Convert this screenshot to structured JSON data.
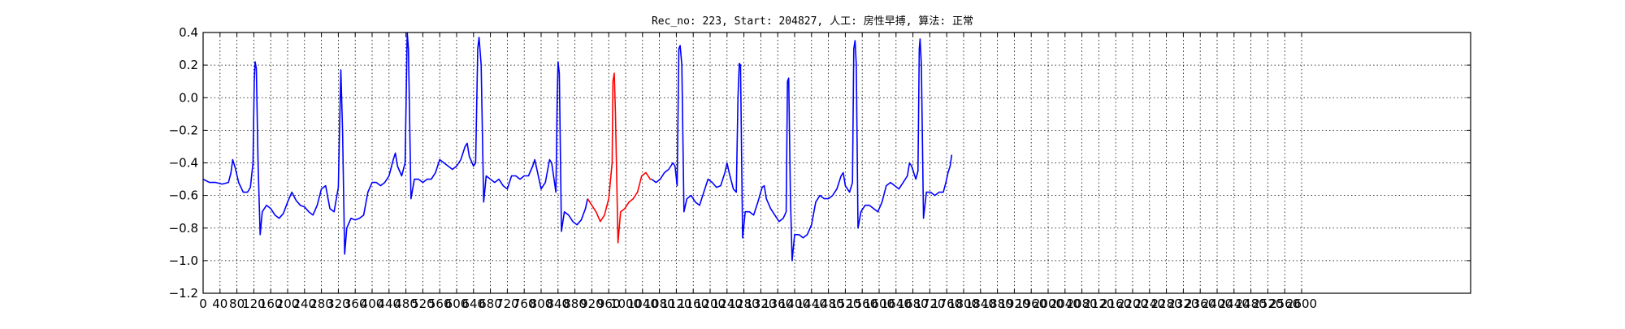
{
  "chart_data": {
    "type": "line",
    "title": "Rec_no: 223, Start: 204827, 人工: 房性早搏, 算法: 正常",
    "xlabel": "",
    "ylabel": "",
    "xlim": [
      0,
      3000
    ],
    "ylim": [
      -1.2,
      0.4
    ],
    "x_tick_step": 40,
    "x_tick_max": 2600,
    "y_ticks": [
      0.4,
      0.2,
      0.0,
      -0.2,
      -0.4,
      -0.6,
      -0.8,
      -1.0,
      -1.2
    ],
    "y_tick_labels": [
      "0.4",
      "0.2",
      "0.0",
      "−0.2",
      "−0.4",
      "−0.6",
      "−0.8",
      "−1.0",
      "−1.2"
    ],
    "grid": true,
    "series": [
      {
        "color": "#0000ff",
        "points": [
          [
            0,
            -0.5
          ],
          [
            15,
            -0.52
          ],
          [
            30,
            -0.52
          ],
          [
            45,
            -0.53
          ],
          [
            60,
            -0.52
          ],
          [
            66,
            -0.46
          ],
          [
            70,
            -0.38
          ],
          [
            76,
            -0.43
          ],
          [
            84,
            -0.52
          ],
          [
            95,
            -0.58
          ],
          [
            105,
            -0.58
          ],
          [
            112,
            -0.55
          ],
          [
            118,
            -0.4
          ],
          [
            121,
            0.1
          ],
          [
            123,
            0.22
          ],
          [
            126,
            0.18
          ],
          [
            130,
            -0.4
          ],
          [
            135,
            -0.84
          ],
          [
            140,
            -0.7
          ],
          [
            150,
            -0.66
          ],
          [
            160,
            -0.68
          ],
          [
            170,
            -0.72
          ],
          [
            180,
            -0.74
          ],
          [
            190,
            -0.71
          ],
          [
            200,
            -0.64
          ],
          [
            210,
            -0.58
          ],
          [
            220,
            -0.63
          ],
          [
            230,
            -0.66
          ],
          [
            240,
            -0.67
          ],
          [
            250,
            -0.7
          ],
          [
            260,
            -0.72
          ],
          [
            270,
            -0.66
          ],
          [
            280,
            -0.56
          ],
          [
            290,
            -0.54
          ],
          [
            300,
            -0.68
          ],
          [
            310,
            -0.7
          ],
          [
            320,
            -0.55
          ],
          [
            326,
            0.17
          ],
          [
            330,
            -0.2
          ],
          [
            335,
            -0.96
          ],
          [
            340,
            -0.8
          ],
          [
            350,
            -0.74
          ],
          [
            360,
            -0.75
          ],
          [
            370,
            -0.74
          ],
          [
            380,
            -0.72
          ],
          [
            390,
            -0.58
          ],
          [
            400,
            -0.52
          ],
          [
            410,
            -0.52
          ],
          [
            420,
            -0.54
          ],
          [
            430,
            -0.52
          ],
          [
            440,
            -0.48
          ],
          [
            450,
            -0.38
          ],
          [
            455,
            -0.34
          ],
          [
            460,
            -0.42
          ],
          [
            470,
            -0.48
          ],
          [
            478,
            -0.4
          ],
          [
            483,
            0.4
          ],
          [
            486,
            0.3
          ],
          [
            492,
            -0.62
          ],
          [
            500,
            -0.5
          ],
          [
            510,
            -0.5
          ],
          [
            520,
            -0.52
          ],
          [
            530,
            -0.5
          ],
          [
            540,
            -0.5
          ],
          [
            550,
            -0.46
          ],
          [
            560,
            -0.38
          ],
          [
            570,
            -0.4
          ],
          [
            580,
            -0.42
          ],
          [
            590,
            -0.44
          ],
          [
            600,
            -0.42
          ],
          [
            610,
            -0.38
          ],
          [
            620,
            -0.3
          ],
          [
            625,
            -0.28
          ],
          [
            630,
            -0.36
          ],
          [
            640,
            -0.42
          ],
          [
            645,
            -0.4
          ],
          [
            650,
            0.3
          ],
          [
            653,
            0.37
          ],
          [
            658,
            0.2
          ],
          [
            664,
            -0.64
          ],
          [
            670,
            -0.48
          ],
          [
            680,
            -0.5
          ],
          [
            690,
            -0.52
          ],
          [
            700,
            -0.5
          ],
          [
            710,
            -0.54
          ],
          [
            720,
            -0.56
          ],
          [
            730,
            -0.48
          ],
          [
            740,
            -0.48
          ],
          [
            750,
            -0.5
          ],
          [
            760,
            -0.48
          ],
          [
            770,
            -0.48
          ],
          [
            780,
            -0.42
          ],
          [
            785,
            -0.38
          ],
          [
            790,
            -0.44
          ],
          [
            800,
            -0.56
          ],
          [
            810,
            -0.52
          ],
          [
            820,
            -0.38
          ],
          [
            825,
            -0.4
          ],
          [
            835,
            -0.58
          ],
          [
            838,
            0.0
          ],
          [
            840,
            0.22
          ],
          [
            843,
            0.15
          ],
          [
            848,
            -0.82
          ],
          [
            855,
            -0.7
          ],
          [
            865,
            -0.72
          ],
          [
            875,
            -0.76
          ],
          [
            885,
            -0.78
          ],
          [
            895,
            -0.75
          ],
          [
            905,
            -0.68
          ],
          [
            910,
            -0.62
          ]
        ]
      },
      {
        "color": "#ff0000",
        "points": [
          [
            910,
            -0.62
          ],
          [
            920,
            -0.66
          ],
          [
            930,
            -0.7
          ],
          [
            940,
            -0.76
          ],
          [
            950,
            -0.72
          ],
          [
            960,
            -0.62
          ],
          [
            968,
            -0.4
          ],
          [
            970,
            0.1
          ],
          [
            973,
            0.15
          ],
          [
            976,
            -0.1
          ],
          [
            982,
            -0.89
          ],
          [
            988,
            -0.7
          ],
          [
            998,
            -0.68
          ],
          [
            1008,
            -0.64
          ],
          [
            1018,
            -0.62
          ],
          [
            1028,
            -0.58
          ],
          [
            1038,
            -0.48
          ],
          [
            1048,
            -0.46
          ],
          [
            1058,
            -0.5
          ],
          [
            1062,
            -0.5
          ]
        ]
      },
      {
        "color": "#0000ff",
        "points": [
          [
            1062,
            -0.5
          ],
          [
            1072,
            -0.52
          ],
          [
            1082,
            -0.5
          ],
          [
            1092,
            -0.46
          ],
          [
            1102,
            -0.44
          ],
          [
            1112,
            -0.4
          ],
          [
            1117,
            -0.42
          ],
          [
            1122,
            -0.54
          ],
          [
            1126,
            0.3
          ],
          [
            1129,
            0.32
          ],
          [
            1133,
            0.2
          ],
          [
            1138,
            -0.7
          ],
          [
            1145,
            -0.62
          ],
          [
            1155,
            -0.6
          ],
          [
            1165,
            -0.64
          ],
          [
            1175,
            -0.66
          ],
          [
            1185,
            -0.58
          ],
          [
            1195,
            -0.5
          ],
          [
            1205,
            -0.52
          ],
          [
            1215,
            -0.55
          ],
          [
            1225,
            -0.54
          ],
          [
            1235,
            -0.46
          ],
          [
            1240,
            -0.4
          ],
          [
            1245,
            -0.46
          ],
          [
            1255,
            -0.56
          ],
          [
            1262,
            -0.58
          ],
          [
            1266,
            0.0
          ],
          [
            1269,
            0.21
          ],
          [
            1272,
            0.2
          ],
          [
            1277,
            -0.86
          ],
          [
            1283,
            -0.7
          ],
          [
            1293,
            -0.7
          ],
          [
            1303,
            -0.72
          ],
          [
            1313,
            -0.64
          ],
          [
            1323,
            -0.55
          ],
          [
            1328,
            -0.54
          ],
          [
            1333,
            -0.62
          ],
          [
            1343,
            -0.68
          ],
          [
            1353,
            -0.72
          ],
          [
            1363,
            -0.76
          ],
          [
            1373,
            -0.74
          ],
          [
            1380,
            -0.7
          ],
          [
            1383,
            0.1
          ],
          [
            1386,
            0.12
          ],
          [
            1390,
            -0.6
          ],
          [
            1394,
            -1.0
          ],
          [
            1400,
            -0.84
          ],
          [
            1410,
            -0.84
          ],
          [
            1420,
            -0.86
          ],
          [
            1430,
            -0.84
          ],
          [
            1440,
            -0.78
          ],
          [
            1450,
            -0.64
          ],
          [
            1460,
            -0.6
          ],
          [
            1470,
            -0.62
          ],
          [
            1480,
            -0.62
          ],
          [
            1490,
            -0.6
          ],
          [
            1500,
            -0.56
          ],
          [
            1510,
            -0.48
          ],
          [
            1515,
            -0.46
          ],
          [
            1520,
            -0.54
          ],
          [
            1530,
            -0.58
          ],
          [
            1537,
            -0.52
          ],
          [
            1540,
            0.3
          ],
          [
            1543,
            0.35
          ],
          [
            1546,
            0.2
          ],
          [
            1550,
            -0.8
          ],
          [
            1557,
            -0.7
          ],
          [
            1567,
            -0.66
          ],
          [
            1577,
            -0.66
          ],
          [
            1587,
            -0.68
          ],
          [
            1597,
            -0.7
          ],
          [
            1607,
            -0.64
          ],
          [
            1617,
            -0.54
          ],
          [
            1627,
            -0.52
          ],
          [
            1637,
            -0.54
          ],
          [
            1647,
            -0.56
          ],
          [
            1657,
            -0.52
          ],
          [
            1667,
            -0.48
          ],
          [
            1672,
            -0.4
          ],
          [
            1677,
            -0.42
          ],
          [
            1687,
            -0.5
          ],
          [
            1692,
            -0.45
          ],
          [
            1695,
            0.3
          ],
          [
            1697,
            0.36
          ],
          [
            1700,
            0.2
          ],
          [
            1705,
            -0.74
          ],
          [
            1712,
            -0.58
          ],
          [
            1722,
            -0.58
          ],
          [
            1732,
            -0.6
          ],
          [
            1742,
            -0.58
          ],
          [
            1752,
            -0.58
          ],
          [
            1758,
            -0.52
          ],
          [
            1763,
            -0.46
          ],
          [
            1768,
            -0.42
          ],
          [
            1772,
            -0.35
          ]
        ]
      }
    ]
  }
}
